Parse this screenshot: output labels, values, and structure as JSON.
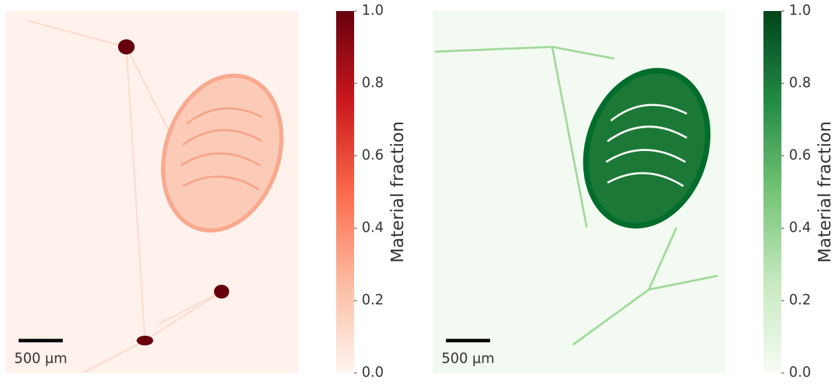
{
  "chart_data": [
    {
      "type": "image",
      "scale_bar_label": "500 µm",
      "colorbar_label": "Material fraction",
      "colors": [
        "#fff5f0",
        "#fcbba1",
        "#fb6a4a",
        "#cb181d",
        "#67000d"
      ],
      "clim": [
        0.0,
        1.0
      ],
      "cticks": [
        {
          "value": 0.0,
          "label": "0.0"
        },
        0.2,
        0.4,
        0.6,
        0.8,
        {
          "value": 1.0,
          "label": "1.0"
        }
      ]
    },
    {
      "type": "image",
      "scale_bar_label": "500 µm",
      "colorbar_label": "Material fraction",
      "colors": [
        "#f7fcf5",
        "#c7e9c0",
        "#74c476",
        "#238b45",
        "#00441b"
      ],
      "clim": [
        0.0,
        1.0
      ],
      "cticks": [
        {
          "value": 0.0,
          "label": "0.0"
        },
        0.2,
        0.4,
        0.6,
        0.8,
        {
          "value": 1.0,
          "label": "1.0"
        }
      ]
    }
  ]
}
